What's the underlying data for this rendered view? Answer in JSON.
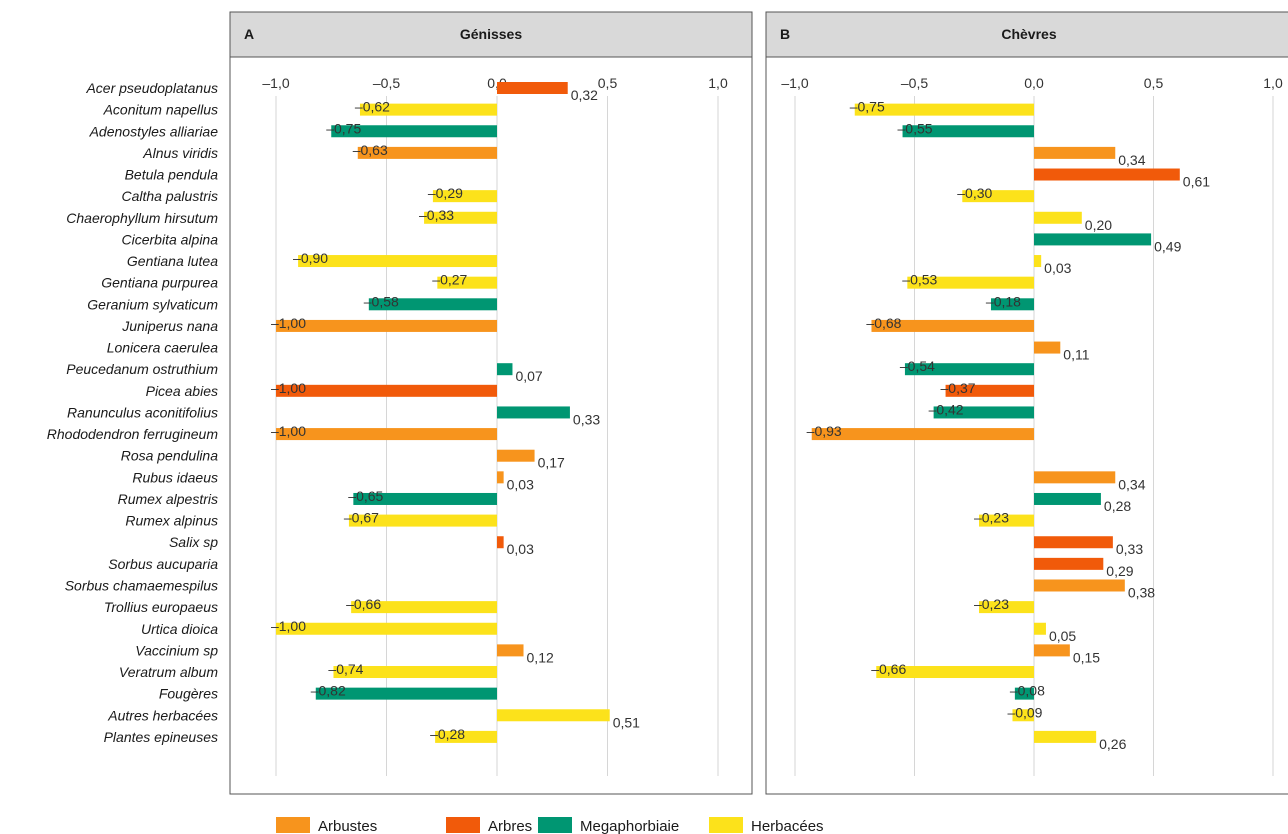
{
  "chart_data": {
    "type": "bar",
    "orientation": "horizontal",
    "categories": [
      "Acer pseudoplatanus",
      "Aconitum napellus",
      "Adenostyles alliariae",
      "Alnus viridis",
      "Betula pendula",
      "Caltha palustris",
      "Chaerophyllum hirsutum",
      "Cicerbita alpina",
      "Gentiana lutea",
      "Gentiana purpurea",
      "Geranium sylvaticum",
      "Juniperus nana",
      "Lonicera caerulea",
      "Peucedanum ostruthium",
      "Picea abies",
      "Ranunculus aconitifolius",
      "Rhododendron ferrugineum",
      "Rosa pendulina",
      "Rubus idaeus",
      "Rumex alpestris",
      "Rumex alpinus",
      "Salix sp",
      "Sorbus aucuparia",
      "Sorbus chamaemespilus",
      "Trollius europaeus",
      "Urtica dioica",
      "Vaccinium sp",
      "Veratrum album",
      "Fougères",
      "Autres herbacées",
      "Plantes epineuses"
    ],
    "groups": [
      "Arbres",
      "Herbacées",
      "Megaphorbiaie",
      "Arbustes",
      "Arbres",
      "Herbacées",
      "Herbacées",
      "Megaphorbiaie",
      "Herbacées",
      "Herbacées",
      "Megaphorbiaie",
      "Arbustes",
      "Arbustes",
      "Megaphorbiaie",
      "Arbres",
      "Megaphorbiaie",
      "Arbustes",
      "Arbustes",
      "Arbustes",
      "Megaphorbiaie",
      "Herbacées",
      "Arbres",
      "Arbres",
      "Arbustes",
      "Herbacées",
      "Herbacées",
      "Arbustes",
      "Herbacées",
      "Megaphorbiaie",
      "Herbacées",
      "Herbacées"
    ],
    "panels": [
      {
        "letter": "A",
        "title": "Génisses",
        "values": [
          0.32,
          -0.62,
          -0.75,
          -0.63,
          null,
          -0.29,
          -0.33,
          null,
          -0.9,
          -0.27,
          -0.58,
          -1.0,
          null,
          0.07,
          -1.0,
          0.33,
          -1.0,
          0.17,
          0.03,
          -0.65,
          -0.67,
          0.03,
          null,
          null,
          -0.66,
          -1.0,
          0.12,
          -0.74,
          -0.82,
          0.51,
          -0.28
        ],
        "labels": [
          "0,32",
          "–0,62",
          "–0,75",
          "–0,63",
          "",
          "–0,29",
          "–0,33",
          "",
          "–0,90",
          "–0,27",
          "–0,58",
          "–1,00",
          "",
          "0,07",
          "–1,00",
          "0,33",
          "–1,00",
          "0,17",
          "0,03",
          "–0,65",
          "–0,67",
          "0,03",
          "",
          "",
          "–0,66",
          "–1,00",
          "0,12",
          "–0,74",
          "–0,82",
          "0,51",
          "–0,28"
        ]
      },
      {
        "letter": "B",
        "title": "Chèvres",
        "values": [
          null,
          -0.75,
          -0.55,
          0.34,
          0.61,
          -0.3,
          0.2,
          0.49,
          0.03,
          -0.53,
          -0.18,
          -0.68,
          0.11,
          -0.54,
          -0.37,
          -0.42,
          -0.93,
          null,
          0.34,
          0.28,
          -0.23,
          0.33,
          0.29,
          0.38,
          -0.23,
          0.05,
          0.15,
          -0.66,
          -0.08,
          -0.09,
          0.26
        ],
        "labels": [
          "",
          "–0,75",
          "–0,55",
          "0,34",
          "0,61",
          "–0,30",
          "0,20",
          "0,49",
          "0,03",
          "–0,53",
          "–0,18",
          "–0,68",
          "0,11",
          "–0,54",
          "–0,37",
          "–0,42",
          "–0,93",
          "",
          "0,34",
          "0,28",
          "–0,23",
          "0,33",
          "0,29",
          "0,38",
          "–0,23",
          "0,05",
          "0,15",
          "–0,66",
          "–0,08",
          "–0,09",
          "0,26"
        ]
      }
    ],
    "xlim": [
      -1.0,
      1.0
    ],
    "xticks": [
      -1.0,
      -0.5,
      0.0,
      0.5,
      1.0
    ],
    "xtick_labels": [
      "–1,0",
      "–0,5",
      "0,0",
      "0,5",
      "1,0"
    ],
    "grid": true,
    "legend_position": "bottom",
    "legend": [
      {
        "name": "Arbustes",
        "color": "#f7941d"
      },
      {
        "name": "Arbres",
        "color": "#f15a0a"
      },
      {
        "name": "Megaphorbiaie",
        "color": "#009672"
      },
      {
        "name": "Herbacées",
        "color": "#fce21b"
      }
    ],
    "colors": {
      "Arbustes": "#f7941d",
      "Arbres": "#f15a0a",
      "Megaphorbiaie": "#009672",
      "Herbacées": "#fce21b"
    }
  }
}
